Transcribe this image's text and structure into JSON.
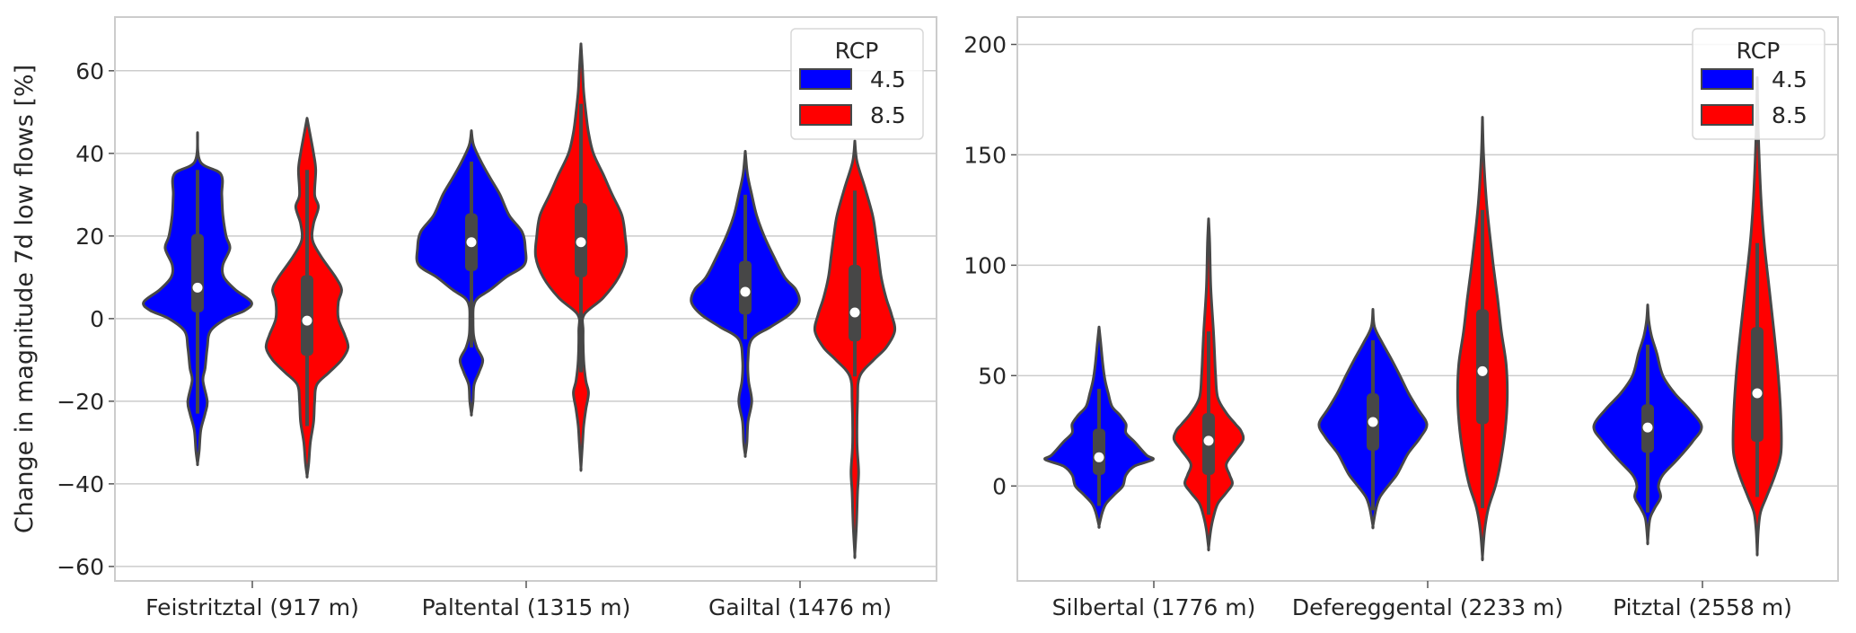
{
  "colors": {
    "rcp45": "#0000ff",
    "rcp85": "#ff0000",
    "outline": "#474747",
    "grid": "#cccccc"
  },
  "chart_data": [
    {
      "type": "violin",
      "ylabel": "Change in magnitude 7d low flows [%]",
      "ylim": [
        -63.5,
        73
      ],
      "yticks": [
        -60,
        -40,
        -20,
        0,
        20,
        40,
        60
      ],
      "grid": true,
      "legend": {
        "title": "RCP",
        "entries": [
          "4.5",
          "8.5"
        ],
        "placement": "top-right"
      },
      "categories": [
        "Feistritztal (917 m)",
        "Paltental (1315 m)",
        "Gailtal (1476 m)"
      ],
      "violins": [
        {
          "cat": 0,
          "rcp": "4.5",
          "median": 7.5,
          "q1": 1.5,
          "q3": 20.5,
          "whisker": [
            -23,
            36
          ],
          "density": [
            [
              45,
              0
            ],
            [
              38,
              0.05
            ],
            [
              35,
              0.43
            ],
            [
              30,
              0.45
            ],
            [
              25,
              0.47
            ],
            [
              20,
              0.53
            ],
            [
              17,
              0.6
            ],
            [
              13,
              0.47
            ],
            [
              10,
              0.49
            ],
            [
              7,
              0.7
            ],
            [
              4,
              1.0
            ],
            [
              2,
              0.88
            ],
            [
              0,
              0.53
            ],
            [
              -3,
              0.24
            ],
            [
              -7,
              0.18
            ],
            [
              -12,
              0.14
            ],
            [
              -15,
              0.1
            ],
            [
              -20,
              0.18
            ],
            [
              -23,
              0.14
            ],
            [
              -27,
              0.06
            ],
            [
              -32,
              0.03
            ],
            [
              -35,
              0
            ]
          ]
        },
        {
          "cat": 0,
          "rcp": "8.5",
          "median": -0.5,
          "q1": -9,
          "q3": 10.5,
          "whisker": [
            -26,
            36
          ],
          "density": [
            [
              48.5,
              0
            ],
            [
              45,
              0.05
            ],
            [
              40,
              0.12
            ],
            [
              36,
              0.16
            ],
            [
              30,
              0.14
            ],
            [
              27,
              0.21
            ],
            [
              23,
              0.12
            ],
            [
              19,
              0.1
            ],
            [
              15,
              0.26
            ],
            [
              10,
              0.53
            ],
            [
              7,
              0.64
            ],
            [
              4,
              0.58
            ],
            [
              0,
              0.58
            ],
            [
              -4,
              0.7
            ],
            [
              -7,
              0.76
            ],
            [
              -10,
              0.64
            ],
            [
              -13,
              0.41
            ],
            [
              -16,
              0.18
            ],
            [
              -20,
              0.14
            ],
            [
              -25,
              0.12
            ],
            [
              -30,
              0.06
            ],
            [
              -35,
              0.03
            ],
            [
              -38,
              0
            ]
          ]
        },
        {
          "cat": 1,
          "rcp": "4.5",
          "median": 18.5,
          "q1": 11.5,
          "q3": 25.5,
          "whisker": [
            -7,
            38
          ],
          "density": [
            [
              45.5,
              0
            ],
            [
              42,
              0.04
            ],
            [
              38,
              0.18
            ],
            [
              34,
              0.35
            ],
            [
              30,
              0.53
            ],
            [
              25,
              0.7
            ],
            [
              21,
              0.94
            ],
            [
              17,
              1.0
            ],
            [
              13,
              0.98
            ],
            [
              10,
              0.64
            ],
            [
              7,
              0.35
            ],
            [
              5,
              0.12
            ],
            [
              3,
              0.04
            ],
            [
              0,
              0.03
            ],
            [
              -4,
              0.04
            ],
            [
              -7,
              0.1
            ],
            [
              -10,
              0.21
            ],
            [
              -13,
              0.14
            ],
            [
              -16,
              0.05
            ],
            [
              -20,
              0.03
            ],
            [
              -23,
              0
            ]
          ]
        },
        {
          "cat": 1,
          "rcp": "8.5",
          "median": 18.5,
          "q1": 10,
          "q3": 28,
          "whisker": [
            -13,
            52
          ],
          "density": [
            [
              66.5,
              0
            ],
            [
              60,
              0.03
            ],
            [
              55,
              0.05
            ],
            [
              50,
              0.09
            ],
            [
              45,
              0.14
            ],
            [
              40,
              0.23
            ],
            [
              35,
              0.41
            ],
            [
              30,
              0.58
            ],
            [
              25,
              0.76
            ],
            [
              20,
              0.82
            ],
            [
              15,
              0.84
            ],
            [
              10,
              0.7
            ],
            [
              5,
              0.41
            ],
            [
              1,
              0.06
            ],
            [
              -3,
              0.04
            ],
            [
              -10,
              0.05
            ],
            [
              -15,
              0.09
            ],
            [
              -18,
              0.14
            ],
            [
              -22,
              0.09
            ],
            [
              -26,
              0.05
            ],
            [
              -30,
              0.03
            ],
            [
              -36,
              0
            ]
          ]
        },
        {
          "cat": 2,
          "rcp": "4.5",
          "median": 6.5,
          "q1": 1,
          "q3": 14,
          "whisker": [
            -5,
            30
          ],
          "density": [
            [
              40.5,
              0
            ],
            [
              35,
              0.04
            ],
            [
              30,
              0.12
            ],
            [
              25,
              0.21
            ],
            [
              20,
              0.35
            ],
            [
              15,
              0.53
            ],
            [
              10,
              0.73
            ],
            [
              7,
              0.94
            ],
            [
              4,
              1.0
            ],
            [
              1,
              0.82
            ],
            [
              -2,
              0.47
            ],
            [
              -5,
              0.12
            ],
            [
              -10,
              0.05
            ],
            [
              -15,
              0.06
            ],
            [
              -20,
              0.12
            ],
            [
              -25,
              0.05
            ],
            [
              -30,
              0.03
            ],
            [
              -33,
              0
            ]
          ]
        },
        {
          "cat": 2,
          "rcp": "8.5",
          "median": 1.5,
          "q1": -5.5,
          "q3": 13,
          "whisker": [
            -14,
            31
          ],
          "density": [
            [
              43,
              0
            ],
            [
              38,
              0.04
            ],
            [
              32,
              0.18
            ],
            [
              25,
              0.33
            ],
            [
              20,
              0.39
            ],
            [
              15,
              0.44
            ],
            [
              10,
              0.49
            ],
            [
              5,
              0.58
            ],
            [
              1,
              0.68
            ],
            [
              -3,
              0.74
            ],
            [
              -7,
              0.58
            ],
            [
              -10,
              0.35
            ],
            [
              -14,
              0.09
            ],
            [
              -20,
              0.05
            ],
            [
              -30,
              0.04
            ],
            [
              -37,
              0.07
            ],
            [
              -42,
              0.05
            ],
            [
              -50,
              0.03
            ],
            [
              -57,
              0
            ]
          ]
        }
      ]
    },
    {
      "type": "violin",
      "ylabel": "",
      "ylim": [
        -43,
        212.4
      ],
      "yticks": [
        0,
        50,
        100,
        150,
        200
      ],
      "grid": true,
      "legend": {
        "title": "RCP",
        "entries": [
          "4.5",
          "8.5"
        ],
        "placement": "top-right"
      },
      "categories": [
        "Silbertal (1776 m)",
        "Defereggental (2233 m)",
        "Pitztal (2558 m)"
      ],
      "violins": [
        {
          "cat": 0,
          "rcp": "4.5",
          "median": 13,
          "q1": 5,
          "q3": 26,
          "whisker": [
            -9,
            44
          ],
          "density": [
            [
              72,
              0
            ],
            [
              65,
              0.03
            ],
            [
              55,
              0.07
            ],
            [
              48,
              0.11
            ],
            [
              42,
              0.17
            ],
            [
              36,
              0.24
            ],
            [
              32,
              0.39
            ],
            [
              28,
              0.5
            ],
            [
              24,
              0.5
            ],
            [
              20,
              0.66
            ],
            [
              14,
              0.88
            ],
            [
              12,
              1.0
            ],
            [
              9,
              0.66
            ],
            [
              5,
              0.5
            ],
            [
              0,
              0.44
            ],
            [
              -4,
              0.28
            ],
            [
              -8,
              0.13
            ],
            [
              -12,
              0.06
            ],
            [
              -18,
              0
            ]
          ]
        },
        {
          "cat": 0,
          "rcp": "8.5",
          "median": 20.5,
          "q1": 5,
          "q3": 33,
          "whisker": [
            -13,
            70
          ],
          "density": [
            [
              121,
              0
            ],
            [
              110,
              0.02
            ],
            [
              90,
              0.04
            ],
            [
              70,
              0.09
            ],
            [
              60,
              0.11
            ],
            [
              50,
              0.13
            ],
            [
              40,
              0.17
            ],
            [
              33,
              0.33
            ],
            [
              28,
              0.5
            ],
            [
              25,
              0.6
            ],
            [
              21,
              0.64
            ],
            [
              16,
              0.5
            ],
            [
              10,
              0.33
            ],
            [
              5,
              0.39
            ],
            [
              1,
              0.44
            ],
            [
              -3,
              0.33
            ],
            [
              -8,
              0.17
            ],
            [
              -14,
              0.09
            ],
            [
              -20,
              0.04
            ],
            [
              -28,
              0
            ]
          ]
        },
        {
          "cat": 1,
          "rcp": "4.5",
          "median": 29,
          "q1": 16,
          "q3": 42,
          "whisker": [
            -11,
            66
          ],
          "density": [
            [
              80,
              0
            ],
            [
              72,
              0.03
            ],
            [
              65,
              0.17
            ],
            [
              58,
              0.33
            ],
            [
              50,
              0.5
            ],
            [
              42,
              0.66
            ],
            [
              35,
              0.83
            ],
            [
              28,
              1.0
            ],
            [
              22,
              0.88
            ],
            [
              15,
              0.66
            ],
            [
              10,
              0.55
            ],
            [
              5,
              0.44
            ],
            [
              0,
              0.28
            ],
            [
              -5,
              0.13
            ],
            [
              -10,
              0.06
            ],
            [
              -18,
              0
            ]
          ]
        },
        {
          "cat": 1,
          "rcp": "8.5",
          "median": 52,
          "q1": 28,
          "q3": 80,
          "whisker": [
            -10,
            125
          ],
          "density": [
            [
              167,
              0
            ],
            [
              150,
              0.02
            ],
            [
              130,
              0.07
            ],
            [
              115,
              0.13
            ],
            [
              100,
              0.2
            ],
            [
              85,
              0.28
            ],
            [
              70,
              0.35
            ],
            [
              55,
              0.44
            ],
            [
              40,
              0.46
            ],
            [
              25,
              0.42
            ],
            [
              10,
              0.33
            ],
            [
              0,
              0.24
            ],
            [
              -10,
              0.11
            ],
            [
              -20,
              0.04
            ],
            [
              -32,
              0
            ]
          ]
        },
        {
          "cat": 2,
          "rcp": "4.5",
          "median": 26.5,
          "q1": 15,
          "q3": 37,
          "whisker": [
            -12,
            64
          ],
          "density": [
            [
              82,
              0
            ],
            [
              75,
              0.02
            ],
            [
              68,
              0.07
            ],
            [
              60,
              0.17
            ],
            [
              50,
              0.28
            ],
            [
              42,
              0.5
            ],
            [
              35,
              0.77
            ],
            [
              27,
              1.0
            ],
            [
              20,
              0.83
            ],
            [
              12,
              0.55
            ],
            [
              5,
              0.28
            ],
            [
              0,
              0.2
            ],
            [
              -5,
              0.24
            ],
            [
              -10,
              0.13
            ],
            [
              -15,
              0.04
            ],
            [
              -25,
              0
            ]
          ]
        },
        {
          "cat": 2,
          "rcp": "8.5",
          "median": 42,
          "q1": 20,
          "q3": 72,
          "whisker": [
            -5,
            110
          ],
          "density": [
            [
              185,
              0
            ],
            [
              160,
              0.02
            ],
            [
              130,
              0.07
            ],
            [
              110,
              0.13
            ],
            [
              90,
              0.22
            ],
            [
              70,
              0.31
            ],
            [
              50,
              0.39
            ],
            [
              30,
              0.44
            ],
            [
              15,
              0.44
            ],
            [
              5,
              0.33
            ],
            [
              -5,
              0.17
            ],
            [
              -12,
              0.06
            ],
            [
              -20,
              0.02
            ],
            [
              -30,
              0
            ]
          ]
        }
      ]
    }
  ]
}
